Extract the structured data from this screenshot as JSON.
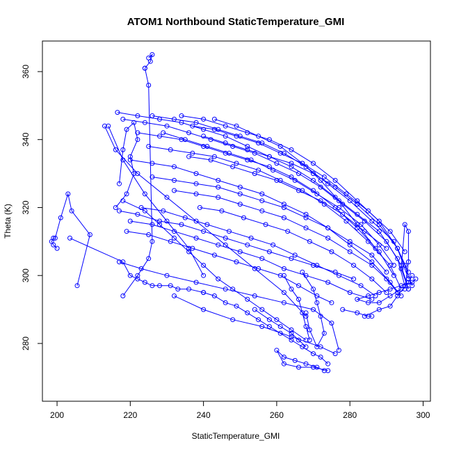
{
  "chart_data": {
    "type": "line",
    "title": "ATOM1 Northbound StaticTemperature_GMI",
    "xlabel": "StaticTemperature_GMI",
    "ylabel": "Theta (K)",
    "xlim": [
      196,
      302
    ],
    "ylim": [
      263,
      369
    ],
    "xticks": [
      200,
      220,
      240,
      260,
      280,
      300
    ],
    "yticks": [
      280,
      300,
      320,
      340,
      360
    ],
    "grid": false,
    "legend": "none",
    "series_color": "#0000ff",
    "series": [
      {
        "x": [
          205.5,
          209,
          204,
          203,
          201,
          199.5,
          199,
          198.5,
          199,
          200
        ],
        "y": [
          297,
          312,
          319,
          324,
          317,
          311,
          311,
          310,
          309,
          308
        ]
      },
      {
        "x": [
          203.5,
          218,
          220,
          222,
          224,
          226,
          228,
          231,
          233,
          236,
          240
        ],
        "y": [
          311,
          304,
          300,
          299,
          298,
          297,
          297,
          297,
          296,
          296,
          295
        ]
      },
      {
        "x": [
          218,
          222,
          225,
          226,
          225,
          224
        ],
        "y": [
          294,
          300,
          305,
          310,
          356,
          361
        ]
      },
      {
        "x": [
          224,
          225.5,
          226,
          225
        ],
        "y": [
          361,
          363,
          365,
          364
        ]
      },
      {
        "x": [
          240,
          243,
          246,
          249,
          252,
          255,
          258,
          261,
          264,
          267,
          270,
          272,
          274
        ],
        "y": [
          295,
          294,
          292,
          291,
          289,
          287,
          285,
          283,
          281,
          279,
          277,
          276,
          274
        ]
      },
      {
        "x": [
          217,
          223,
          230,
          238,
          246,
          254,
          262,
          270,
          275,
          277
        ],
        "y": [
          304,
          302,
          300,
          298,
          296,
          294,
          292,
          290,
          286,
          278
        ]
      },
      {
        "x": [
          232,
          240,
          248,
          256,
          264,
          272,
          276
        ],
        "y": [
          294,
          290,
          287,
          285,
          282,
          279,
          277
        ]
      },
      {
        "x": [
          274,
          270,
          266,
          262,
          260,
          262,
          265,
          268,
          271,
          273
        ],
        "y": [
          272,
          273,
          273,
          274,
          278,
          276,
          275,
          274,
          273,
          272
        ]
      },
      {
        "x": [
          217,
          222,
          228,
          234,
          240,
          246,
          252,
          258,
          264,
          270,
          276,
          281
        ],
        "y": [
          319,
          318,
          316,
          315,
          313,
          311,
          309,
          307,
          305,
          303,
          301,
          299
        ]
      },
      {
        "x": [
          220,
          226,
          232,
          238,
          244,
          250,
          256,
          262,
          268,
          274,
          280,
          286
        ],
        "y": [
          316,
          315,
          313,
          311,
          309,
          307,
          305,
          302,
          300,
          298,
          295,
          293
        ]
      },
      {
        "x": [
          219,
          225,
          231,
          237,
          243,
          249,
          255,
          261,
          266,
          271,
          275
        ],
        "y": [
          313,
          312,
          310,
          308,
          306,
          304,
          302,
          300,
          297,
          294,
          292
        ]
      },
      {
        "x": [
          223,
          229,
          235,
          241,
          247,
          253,
          259,
          265,
          271,
          277,
          283,
          287
        ],
        "y": [
          320,
          319,
          317,
          315,
          313,
          311,
          309,
          306,
          303,
          300,
          297,
          294
        ]
      },
      {
        "x": [
          218,
          224,
          228,
          232,
          236,
          240,
          244,
          248,
          252,
          256,
          260,
          264,
          268
        ],
        "y": [
          322,
          319,
          315,
          311,
          307,
          303,
          299,
          296,
          293,
          290,
          287,
          284,
          281
        ]
      },
      {
        "x": [
          216,
          219,
          221,
          220,
          222,
          221,
          219,
          218,
          217
        ],
        "y": [
          320,
          324,
          330,
          335,
          340,
          345,
          343,
          337,
          327
        ]
      },
      {
        "x": [
          213,
          216,
          222,
          230,
          238,
          246,
          254,
          262,
          268
        ],
        "y": [
          344,
          337,
          330,
          323,
          316,
          309,
          302,
          295,
          288
        ]
      },
      {
        "x": [
          214,
          218,
          224,
          230,
          236,
          240
        ],
        "y": [
          344,
          334,
          324,
          316,
          308,
          300
        ]
      },
      {
        "x": [
          216.5,
          222,
          228,
          234,
          240,
          246,
          252,
          258,
          264,
          270,
          276,
          282,
          288,
          293,
          295
        ],
        "y": [
          348,
          347,
          346,
          345,
          343,
          341,
          338,
          335,
          332,
          328,
          323,
          318,
          313,
          305,
          297
        ]
      },
      {
        "x": [
          218,
          224,
          230,
          236,
          242,
          248,
          254,
          260,
          266,
          272,
          278,
          284,
          290,
          294,
          296
        ],
        "y": [
          346,
          345,
          344,
          342,
          340,
          338,
          336,
          333,
          330,
          326,
          321,
          316,
          310,
          303,
          296
        ]
      },
      {
        "x": [
          226,
          232,
          238,
          244,
          250,
          256,
          262,
          268,
          274,
          280,
          286,
          292,
          295,
          297
        ],
        "y": [
          347,
          346,
          345,
          343,
          341,
          339,
          336,
          332,
          327,
          322,
          316,
          310,
          303,
          297
        ]
      },
      {
        "x": [
          234,
          240,
          246,
          252,
          258,
          264,
          270,
          276,
          282,
          288,
          293,
          296
        ],
        "y": [
          347,
          346,
          344,
          342,
          340,
          337,
          333,
          328,
          322,
          316,
          308,
          299
        ]
      },
      {
        "x": [
          222,
          228,
          234,
          240,
          246,
          252,
          258,
          264,
          270,
          276,
          282,
          288,
          292
        ],
        "y": [
          342,
          341,
          340,
          338,
          336,
          334,
          332,
          329,
          325,
          320,
          314,
          307,
          300
        ]
      },
      {
        "x": [
          225,
          231,
          237,
          243,
          249,
          255,
          261,
          267,
          273,
          279,
          285,
          291,
          294
        ],
        "y": [
          338,
          337,
          336,
          335,
          333,
          331,
          328,
          325,
          321,
          316,
          310,
          303,
          296
        ]
      },
      {
        "x": [
          220,
          226,
          232,
          238,
          244,
          250,
          256,
          262,
          268,
          274,
          280,
          286,
          291,
          294
        ],
        "y": [
          334,
          333,
          332,
          330,
          328,
          326,
          324,
          321,
          318,
          314,
          309,
          304,
          298,
          294
        ]
      },
      {
        "x": [
          226,
          232,
          238,
          244,
          250,
          256,
          262,
          268,
          274,
          280,
          286,
          290
        ],
        "y": [
          329,
          328,
          327,
          326,
          324,
          322,
          320,
          317,
          314,
          310,
          306,
          301
        ]
      },
      {
        "x": [
          237,
          243,
          249,
          255,
          261,
          267,
          273,
          279,
          285,
          291,
          295
        ],
        "y": [
          344,
          343,
          341,
          339,
          336,
          333,
          329,
          324,
          319,
          313,
          307
        ]
      },
      {
        "x": [
          240,
          246,
          252,
          258,
          264,
          270,
          276,
          282,
          288,
          293,
          296
        ],
        "y": [
          341,
          339,
          337,
          335,
          333,
          330,
          326,
          321,
          315,
          308,
          301
        ]
      },
      {
        "x": [
          243,
          249,
          255,
          261,
          267,
          272,
          277,
          282,
          287
        ],
        "y": [
          346,
          344,
          341,
          338,
          333,
          328,
          322,
          315,
          308
        ]
      },
      {
        "x": [
          236,
          242,
          248,
          254,
          260,
          266,
          272,
          278,
          284,
          290
        ],
        "y": [
          335,
          334,
          332,
          330,
          328,
          325,
          322,
          318,
          313,
          308
        ]
      },
      {
        "x": [
          229,
          235,
          241,
          247,
          253,
          259,
          265,
          271,
          277,
          283,
          288,
          292
        ],
        "y": [
          342,
          340,
          338,
          336,
          334,
          331,
          328,
          324,
          320,
          315,
          309,
          303
        ]
      },
      {
        "x": [
          232,
          238,
          244,
          250,
          256,
          262,
          268,
          274,
          280,
          286,
          290,
          293
        ],
        "y": [
          325,
          324,
          323,
          321,
          319,
          317,
          314,
          311,
          307,
          303,
          299,
          295
        ]
      },
      {
        "x": [
          239,
          245,
          251,
          257,
          263,
          269,
          275,
          281,
          286,
          290
        ],
        "y": [
          320,
          319,
          317,
          315,
          313,
          310,
          307,
          303,
          299,
          295
        ]
      },
      {
        "x": [
          294,
          291,
          288,
          285,
          282,
          285,
          288,
          291,
          294,
          297,
          298
        ],
        "y": [
          296,
          294,
          292,
          292,
          293,
          294,
          295,
          296,
          297,
          298,
          299
        ]
      },
      {
        "x": [
          284,
          288,
          291,
          293,
          296,
          297
        ],
        "y": [
          288,
          290,
          291,
          294,
          298,
          300
        ]
      },
      {
        "x": [
          295,
          296,
          296,
          295,
          294,
          296
        ],
        "y": [
          296,
          304,
          313,
          315,
          302,
          296
        ]
      },
      {
        "x": [
          267,
          270,
          271,
          272,
          273,
          271,
          269,
          268
        ],
        "y": [
          301,
          296,
          292,
          288,
          283,
          279,
          284,
          289
        ]
      },
      {
        "x": [
          262,
          264,
          266,
          267,
          268,
          269
        ],
        "y": [
          300,
          296,
          293,
          289,
          285,
          281
        ]
      },
      {
        "x": [
          278,
          282,
          285,
          286
        ],
        "y": [
          290,
          289,
          288,
          288
        ]
      },
      {
        "x": [
          254,
          258,
          261,
          264,
          266,
          268
        ],
        "y": [
          290,
          287,
          285,
          283,
          281,
          279
        ]
      }
    ]
  }
}
